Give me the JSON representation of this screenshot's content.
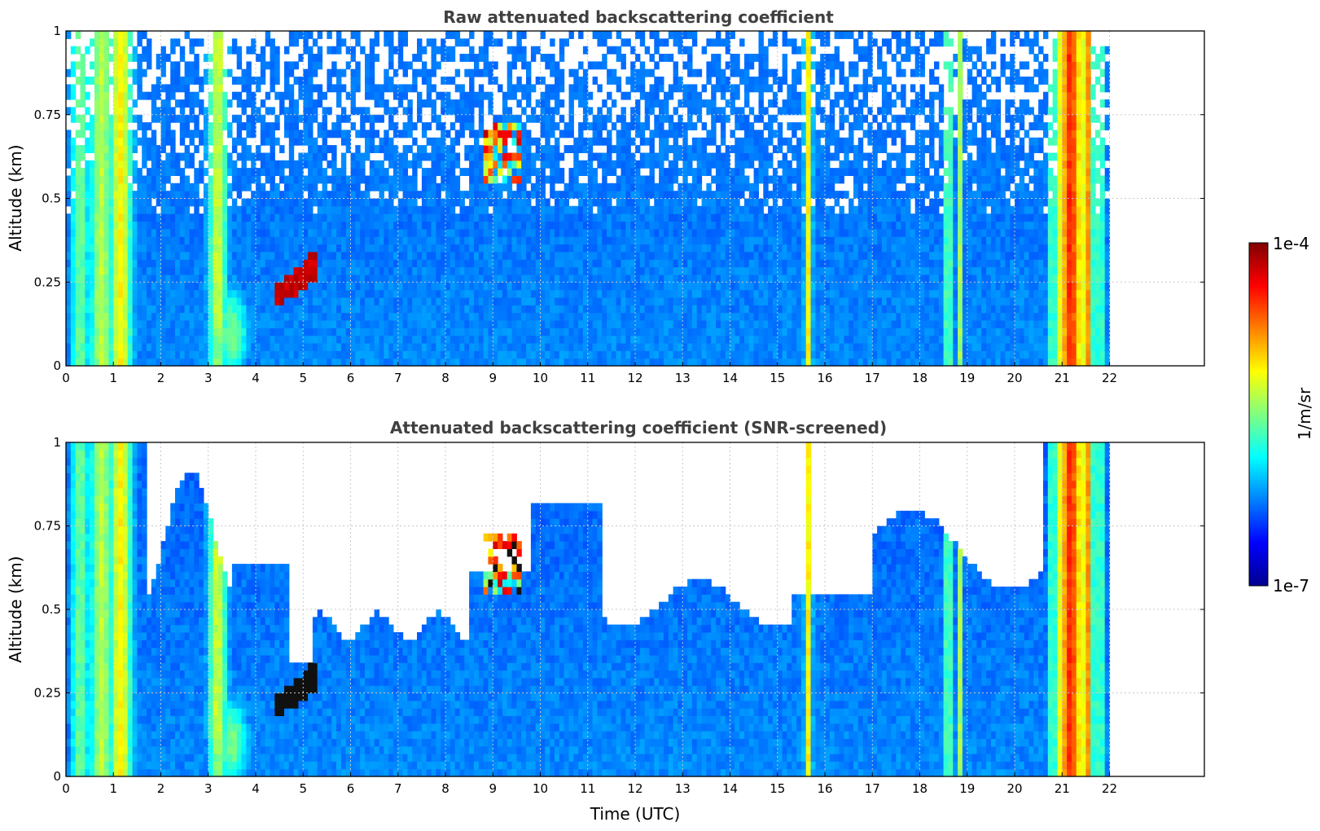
{
  "colormap": {
    "stops": [
      "#00008f",
      "#0000ff",
      "#0080ff",
      "#00ffff",
      "#80ff80",
      "#ffff00",
      "#ff8000",
      "#ff0000",
      "#800000"
    ],
    "low": "#e6e6ff",
    "grid": "#c8c8c8"
  },
  "chart_data": [
    {
      "type": "heatmap",
      "title": "Raw attenuated backscattering coefficient",
      "xlabel": "",
      "ylabel": "Altitude (km)",
      "xlim": [
        0,
        24
      ],
      "ylim": [
        0,
        1
      ],
      "xticks": [
        "0",
        "1",
        "2",
        "3",
        "4",
        "5",
        "6",
        "7",
        "8",
        "9",
        "10",
        "11",
        "12",
        "13",
        "14",
        "15",
        "16",
        "17",
        "18",
        "19",
        "20",
        "21",
        "22"
      ],
      "yticks": [
        "0",
        "0.25",
        "0.5",
        "0.75",
        "1"
      ],
      "data_end_hour": 22,
      "screened": false,
      "grid": true
    },
    {
      "type": "heatmap",
      "title": "Attenuated backscattering coefficient (SNR-screened)",
      "xlabel": "Time (UTC)",
      "ylabel": "Altitude (km)",
      "xlim": [
        0,
        24
      ],
      "ylim": [
        0,
        1
      ],
      "xticks": [
        "0",
        "1",
        "2",
        "3",
        "4",
        "5",
        "6",
        "7",
        "8",
        "9",
        "10",
        "11",
        "12",
        "13",
        "14",
        "15",
        "16",
        "17",
        "18",
        "19",
        "20",
        "21",
        "22"
      ],
      "yticks": [
        "0",
        "0.25",
        "0.5",
        "0.75",
        "1"
      ],
      "data_end_hour": 22,
      "screened": true,
      "grid": true
    }
  ],
  "colorbar": {
    "max_label": "1e-4",
    "min_label": "1e-7",
    "unit_label": "1/m/sr",
    "scale": "log",
    "range": [
      1e-07,
      0.0001
    ]
  }
}
